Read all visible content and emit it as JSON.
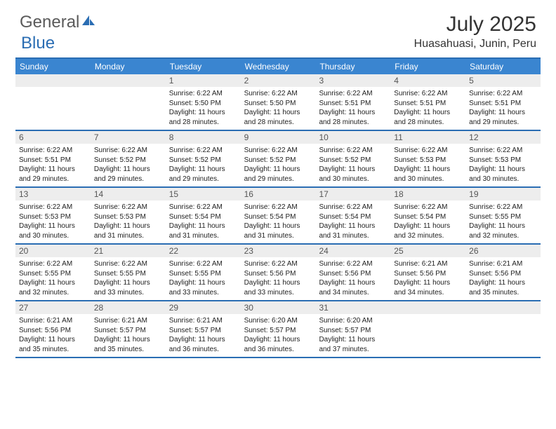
{
  "brand": {
    "word1": "General",
    "word2": "Blue",
    "word2_color": "#2a6db3"
  },
  "title": "July 2025",
  "location": "Huasahuasi, Junin, Peru",
  "colors": {
    "header_bg": "#3a85d0",
    "rule": "#2a6db3",
    "daynum_bg": "#ededed",
    "text": "#222222"
  },
  "dow": [
    "Sunday",
    "Monday",
    "Tuesday",
    "Wednesday",
    "Thursday",
    "Friday",
    "Saturday"
  ],
  "weeks": [
    [
      {
        "empty": true
      },
      {
        "empty": true
      },
      {
        "n": "1",
        "sr": "6:22 AM",
        "ss": "5:50 PM",
        "dl": "11 hours and 28 minutes."
      },
      {
        "n": "2",
        "sr": "6:22 AM",
        "ss": "5:50 PM",
        "dl": "11 hours and 28 minutes."
      },
      {
        "n": "3",
        "sr": "6:22 AM",
        "ss": "5:51 PM",
        "dl": "11 hours and 28 minutes."
      },
      {
        "n": "4",
        "sr": "6:22 AM",
        "ss": "5:51 PM",
        "dl": "11 hours and 28 minutes."
      },
      {
        "n": "5",
        "sr": "6:22 AM",
        "ss": "5:51 PM",
        "dl": "11 hours and 29 minutes."
      }
    ],
    [
      {
        "n": "6",
        "sr": "6:22 AM",
        "ss": "5:51 PM",
        "dl": "11 hours and 29 minutes."
      },
      {
        "n": "7",
        "sr": "6:22 AM",
        "ss": "5:52 PM",
        "dl": "11 hours and 29 minutes."
      },
      {
        "n": "8",
        "sr": "6:22 AM",
        "ss": "5:52 PM",
        "dl": "11 hours and 29 minutes."
      },
      {
        "n": "9",
        "sr": "6:22 AM",
        "ss": "5:52 PM",
        "dl": "11 hours and 29 minutes."
      },
      {
        "n": "10",
        "sr": "6:22 AM",
        "ss": "5:52 PM",
        "dl": "11 hours and 30 minutes."
      },
      {
        "n": "11",
        "sr": "6:22 AM",
        "ss": "5:53 PM",
        "dl": "11 hours and 30 minutes."
      },
      {
        "n": "12",
        "sr": "6:22 AM",
        "ss": "5:53 PM",
        "dl": "11 hours and 30 minutes."
      }
    ],
    [
      {
        "n": "13",
        "sr": "6:22 AM",
        "ss": "5:53 PM",
        "dl": "11 hours and 30 minutes."
      },
      {
        "n": "14",
        "sr": "6:22 AM",
        "ss": "5:53 PM",
        "dl": "11 hours and 31 minutes."
      },
      {
        "n": "15",
        "sr": "6:22 AM",
        "ss": "5:54 PM",
        "dl": "11 hours and 31 minutes."
      },
      {
        "n": "16",
        "sr": "6:22 AM",
        "ss": "5:54 PM",
        "dl": "11 hours and 31 minutes."
      },
      {
        "n": "17",
        "sr": "6:22 AM",
        "ss": "5:54 PM",
        "dl": "11 hours and 31 minutes."
      },
      {
        "n": "18",
        "sr": "6:22 AM",
        "ss": "5:54 PM",
        "dl": "11 hours and 32 minutes."
      },
      {
        "n": "19",
        "sr": "6:22 AM",
        "ss": "5:55 PM",
        "dl": "11 hours and 32 minutes."
      }
    ],
    [
      {
        "n": "20",
        "sr": "6:22 AM",
        "ss": "5:55 PM",
        "dl": "11 hours and 32 minutes."
      },
      {
        "n": "21",
        "sr": "6:22 AM",
        "ss": "5:55 PM",
        "dl": "11 hours and 33 minutes."
      },
      {
        "n": "22",
        "sr": "6:22 AM",
        "ss": "5:55 PM",
        "dl": "11 hours and 33 minutes."
      },
      {
        "n": "23",
        "sr": "6:22 AM",
        "ss": "5:56 PM",
        "dl": "11 hours and 33 minutes."
      },
      {
        "n": "24",
        "sr": "6:22 AM",
        "ss": "5:56 PM",
        "dl": "11 hours and 34 minutes."
      },
      {
        "n": "25",
        "sr": "6:21 AM",
        "ss": "5:56 PM",
        "dl": "11 hours and 34 minutes."
      },
      {
        "n": "26",
        "sr": "6:21 AM",
        "ss": "5:56 PM",
        "dl": "11 hours and 35 minutes."
      }
    ],
    [
      {
        "n": "27",
        "sr": "6:21 AM",
        "ss": "5:56 PM",
        "dl": "11 hours and 35 minutes."
      },
      {
        "n": "28",
        "sr": "6:21 AM",
        "ss": "5:57 PM",
        "dl": "11 hours and 35 minutes."
      },
      {
        "n": "29",
        "sr": "6:21 AM",
        "ss": "5:57 PM",
        "dl": "11 hours and 36 minutes."
      },
      {
        "n": "30",
        "sr": "6:20 AM",
        "ss": "5:57 PM",
        "dl": "11 hours and 36 minutes."
      },
      {
        "n": "31",
        "sr": "6:20 AM",
        "ss": "5:57 PM",
        "dl": "11 hours and 37 minutes."
      },
      {
        "empty": true
      },
      {
        "empty": true
      }
    ]
  ],
  "labels": {
    "sunrise": "Sunrise:",
    "sunset": "Sunset:",
    "daylight": "Daylight:"
  }
}
